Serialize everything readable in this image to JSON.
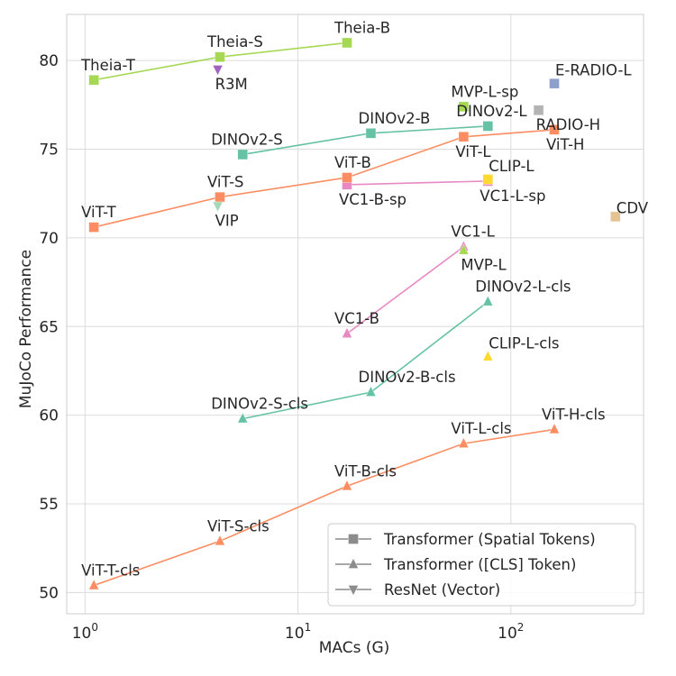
{
  "chart_data": {
    "type": "scatter",
    "xlabel": "MACs (G)",
    "ylabel": "MuJoCo Performance",
    "xscale": "log",
    "xlim": [
      0.82,
      420
    ],
    "ylim": [
      48.8,
      82.6
    ],
    "grid": true,
    "xticks": [
      {
        "value": 1,
        "base": "10",
        "exp": "0"
      },
      {
        "value": 10,
        "base": "10",
        "exp": "1"
      },
      {
        "value": 100,
        "base": "10",
        "exp": "2"
      }
    ],
    "yticks": [
      50,
      55,
      60,
      65,
      70,
      75,
      80
    ],
    "legend": {
      "placement": "lower-right",
      "entries": [
        {
          "marker": "square",
          "label": "Transformer (Spatial Tokens)"
        },
        {
          "marker": "triangle-up",
          "label": "Transformer ([CLS] Token)"
        },
        {
          "marker": "triangle-down",
          "label": "ResNet (Vector)"
        }
      ]
    },
    "series": [
      {
        "color": "#a6d854",
        "marker": "square",
        "connected": true,
        "points": [
          {
            "x": 1.1,
            "y": 78.9,
            "label": "Theia-T",
            "anchor": "above"
          },
          {
            "x": 4.3,
            "y": 80.2,
            "label": "Theia-S",
            "anchor": "above"
          },
          {
            "x": 17,
            "y": 81.0,
            "label": "Theia-B",
            "anchor": "above"
          }
        ]
      },
      {
        "color": "#66c2a5",
        "marker": "square",
        "connected": true,
        "points": [
          {
            "x": 5.5,
            "y": 74.7,
            "label": "DINOv2-S",
            "anchor": "above-left"
          },
          {
            "x": 22,
            "y": 75.9,
            "label": "DINOv2-B",
            "anchor": "above"
          },
          {
            "x": 78,
            "y": 76.3,
            "label": "DINOv2-L",
            "anchor": "above-left"
          }
        ]
      },
      {
        "color": "#e78ac3",
        "marker": "square",
        "connected": true,
        "points": [
          {
            "x": 17,
            "y": 73.0,
            "label": "VC1-B-sp",
            "anchor": "below"
          },
          {
            "x": 78,
            "y": 73.2,
            "label": "VC1-L-sp",
            "anchor": "below"
          }
        ]
      },
      {
        "color": "#fc8d62",
        "marker": "square",
        "connected": true,
        "points": [
          {
            "x": 1.1,
            "y": 70.6,
            "label": "ViT-T",
            "anchor": "above"
          },
          {
            "x": 4.3,
            "y": 72.3,
            "label": "ViT-S",
            "anchor": "above"
          },
          {
            "x": 17,
            "y": 73.4,
            "label": "ViT-B",
            "anchor": "above"
          },
          {
            "x": 60,
            "y": 75.7,
            "label": "ViT-L",
            "anchor": "below"
          },
          {
            "x": 160,
            "y": 76.1,
            "label": "ViT-H",
            "anchor": "below"
          }
        ]
      },
      {
        "color": "#e78ac3",
        "marker": "triangle-up",
        "connected": true,
        "points": [
          {
            "x": 17,
            "y": 64.6,
            "label": "VC1-B",
            "anchor": "above"
          },
          {
            "x": 60,
            "y": 69.5,
            "label": "VC1-L",
            "anchor": "above"
          }
        ]
      },
      {
        "color": "#66c2a5",
        "marker": "triangle-up",
        "connected": true,
        "points": [
          {
            "x": 5.5,
            "y": 59.8,
            "label": "DINOv2-S-cls",
            "anchor": "above-left"
          },
          {
            "x": 22,
            "y": 61.3,
            "label": "DINOv2-B-cls",
            "anchor": "above"
          },
          {
            "x": 78,
            "y": 66.4,
            "label": "DINOv2-L-cls",
            "anchor": "above"
          }
        ]
      },
      {
        "color": "#fc8d62",
        "marker": "triangle-up",
        "connected": true,
        "points": [
          {
            "x": 1.1,
            "y": 50.4,
            "label": "ViT-T-cls",
            "anchor": "above"
          },
          {
            "x": 4.3,
            "y": 52.9,
            "label": "ViT-S-cls",
            "anchor": "above"
          },
          {
            "x": 17,
            "y": 56.0,
            "label": "ViT-B-cls",
            "anchor": "above"
          },
          {
            "x": 60,
            "y": 58.4,
            "label": "ViT-L-cls",
            "anchor": "above"
          },
          {
            "x": 160,
            "y": 59.2,
            "label": "ViT-H-cls",
            "anchor": "above"
          }
        ]
      },
      {
        "color": "#ffd92f",
        "marker": "square",
        "connected": false,
        "points": [
          {
            "x": 78,
            "y": 73.3,
            "label": "CLIP-L",
            "anchor": "above-right"
          }
        ]
      },
      {
        "color": "#ffd92f",
        "marker": "triangle-up",
        "connected": false,
        "points": [
          {
            "x": 78,
            "y": 63.3,
            "label": "CLIP-L-cls",
            "anchor": "above-right"
          }
        ]
      },
      {
        "color": "#8da0cb",
        "marker": "square",
        "connected": false,
        "points": [
          {
            "x": 160,
            "y": 78.7,
            "label": "E-RADIO-L",
            "anchor": "above-right"
          }
        ]
      },
      {
        "color": "#b3b3b3",
        "marker": "square",
        "connected": false,
        "points": [
          {
            "x": 135,
            "y": 77.2,
            "label": "RADIO-H",
            "anchor": "below-right"
          }
        ]
      },
      {
        "color": "#e5c494",
        "marker": "square",
        "connected": false,
        "points": [
          {
            "x": 310,
            "y": 71.2,
            "label": "CDV",
            "anchor": "right"
          }
        ]
      },
      {
        "color": "#a6d854",
        "marker": "square",
        "connected": false,
        "points": [
          {
            "x": 60,
            "y": 77.4,
            "label": "MVP-L-sp",
            "anchor": "above"
          }
        ]
      },
      {
        "color": "#a6d854",
        "marker": "triangle-up",
        "connected": false,
        "points": [
          {
            "x": 60,
            "y": 69.3,
            "label": "MVP-L",
            "anchor": "below-right"
          }
        ]
      },
      {
        "color": "#a064c0",
        "marker": "triangle-down",
        "connected": false,
        "points": [
          {
            "x": 4.2,
            "y": 79.5,
            "label": "R3M",
            "anchor": "below-right"
          }
        ]
      },
      {
        "color": "#a6d8b8",
        "marker": "triangle-down",
        "connected": false,
        "points": [
          {
            "x": 4.2,
            "y": 71.8,
            "label": "VIP",
            "anchor": "below-right"
          }
        ]
      }
    ]
  }
}
